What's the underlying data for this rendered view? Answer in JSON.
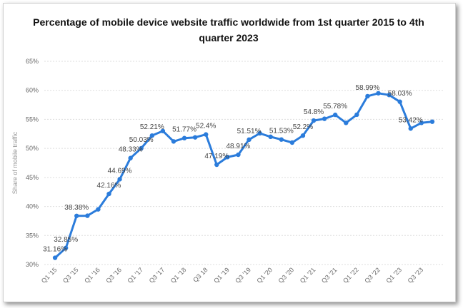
{
  "chart_data": {
    "type": "line",
    "title": "Percentage of mobile device website traffic worldwide from 1st quarter 2015 to 4th quarter 2023",
    "ylabel": "Share of mobile traffic",
    "xlabel": "",
    "ylim": [
      30,
      65
    ],
    "yticks": [
      "30%",
      "35%",
      "40%",
      "45%",
      "50%",
      "55%",
      "60%",
      "65%"
    ],
    "grid": true,
    "line_color": "#2b7cdb",
    "x": [
      "Q1 '15",
      "Q2 '15",
      "Q3 '15",
      "Q4 '15",
      "Q1 '16",
      "Q2 '16",
      "Q3 '16",
      "Q4 '16",
      "Q1 '17",
      "Q2 '17",
      "Q3 '17",
      "Q4 '17",
      "Q1 '18",
      "Q2 '18",
      "Q3 '18",
      "Q4 '18",
      "Q1 '19",
      "Q2 '19",
      "Q3 '19",
      "Q4 '19",
      "Q1 '20",
      "Q2 '20",
      "Q3 '20",
      "Q4 '20",
      "Q1 '21",
      "Q2 '21",
      "Q3 '21",
      "Q4 '21",
      "Q1 '22",
      "Q2 '22",
      "Q3 '22",
      "Q4 '22",
      "Q1 '23",
      "Q2 '23",
      "Q3 '23",
      "Q4 '23"
    ],
    "x_tick_labels": [
      "Q1 '15",
      "Q3 '15",
      "Q1 '16",
      "Q3 '16",
      "Q1 '17",
      "Q3 '17",
      "Q1 '18",
      "Q3 18",
      "Q1 '19",
      "Q3 '19",
      "Q1 '20",
      "Q3 '20",
      "Q1 '21",
      "Q3 '21",
      "Q1 '22",
      "Q3 '22",
      "Q1 '23",
      "Q3 '23"
    ],
    "values": [
      31.16,
      32.85,
      38.38,
      38.4,
      39.5,
      42.16,
      44.69,
      48.33,
      50.03,
      52.21,
      53.0,
      51.2,
      51.77,
      51.9,
      52.4,
      47.19,
      48.5,
      48.91,
      51.51,
      52.6,
      52.0,
      51.53,
      51.0,
      52.2,
      54.8,
      55.1,
      55.78,
      54.4,
      55.8,
      58.99,
      59.5,
      59.2,
      58.03,
      53.42,
      54.4,
      54.6
    ],
    "data_labels": [
      {
        "index": 0,
        "text": "31.16%"
      },
      {
        "index": 1,
        "text": "32.85%"
      },
      {
        "index": 2,
        "text": "38.38%"
      },
      {
        "index": 5,
        "text": "42.16%"
      },
      {
        "index": 6,
        "text": "44.69%"
      },
      {
        "index": 7,
        "text": "48.33%"
      },
      {
        "index": 8,
        "text": "50.03%"
      },
      {
        "index": 9,
        "text": "52.21%"
      },
      {
        "index": 12,
        "text": "51.77%"
      },
      {
        "index": 14,
        "text": "52.4%"
      },
      {
        "index": 15,
        "text": "47.19%"
      },
      {
        "index": 17,
        "text": "48.91%"
      },
      {
        "index": 18,
        "text": "51.51%"
      },
      {
        "index": 21,
        "text": "51.53%"
      },
      {
        "index": 23,
        "text": "52.2%"
      },
      {
        "index": 24,
        "text": "54.8%"
      },
      {
        "index": 26,
        "text": "55.78%"
      },
      {
        "index": 29,
        "text": "58.99%"
      },
      {
        "index": 32,
        "text": "58.03%"
      },
      {
        "index": 33,
        "text": "53.42%"
      }
    ]
  }
}
